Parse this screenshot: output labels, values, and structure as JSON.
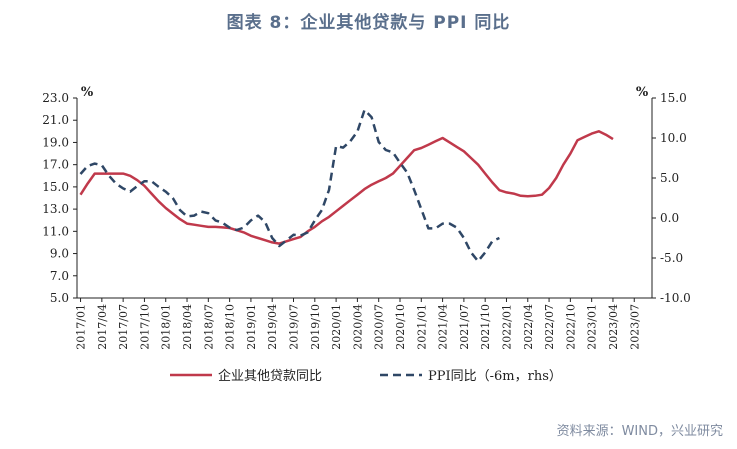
{
  "title": "图表 8：企业其他贷款与 PPI 同比",
  "source": "资料来源：WIND，兴业研究",
  "colors": {
    "loans": "#c0394b",
    "ppi": "#2f4766",
    "axis": "#222222"
  },
  "chart_data": {
    "type": "line",
    "x": [
      "2017/01",
      "2017/02",
      "2017/03",
      "2017/04",
      "2017/05",
      "2017/06",
      "2017/07",
      "2017/08",
      "2017/09",
      "2017/10",
      "2017/11",
      "2017/12",
      "2018/01",
      "2018/02",
      "2018/03",
      "2018/04",
      "2018/05",
      "2018/06",
      "2018/07",
      "2018/08",
      "2018/09",
      "2018/10",
      "2018/11",
      "2018/12",
      "2019/01",
      "2019/02",
      "2019/03",
      "2019/04",
      "2019/05",
      "2019/06",
      "2019/07",
      "2019/08",
      "2019/09",
      "2019/10",
      "2019/11",
      "2019/12",
      "2020/01",
      "2020/02",
      "2020/03",
      "2020/04",
      "2020/05",
      "2020/06",
      "2020/07",
      "2020/08",
      "2020/09",
      "2020/10",
      "2020/11",
      "2020/12",
      "2021/01",
      "2021/02",
      "2021/03",
      "2021/04",
      "2021/05",
      "2021/06",
      "2021/07",
      "2021/08",
      "2021/09",
      "2021/10",
      "2021/11",
      "2021/12",
      "2022/01",
      "2022/02",
      "2022/03",
      "2022/04",
      "2022/05",
      "2022/06",
      "2022/07",
      "2022/08",
      "2022/09",
      "2022/10",
      "2022/11",
      "2022/12",
      "2023/01",
      "2023/02",
      "2023/03",
      "2023/04",
      "2023/05",
      "2023/06",
      "2023/07",
      "2023/08",
      "2023/09"
    ],
    "tick_labels": [
      "2017/01",
      "2017/04",
      "2017/07",
      "2017/10",
      "2018/01",
      "2018/04",
      "2018/07",
      "2018/10",
      "2019/01",
      "2019/04",
      "2019/07",
      "2019/10",
      "2020/01",
      "2020/04",
      "2020/07",
      "2020/10",
      "2021/01",
      "2021/04",
      "2021/07",
      "2021/10",
      "2022/01",
      "2022/04",
      "2022/07",
      "2022/10",
      "2023/01",
      "2023/04",
      "2023/07"
    ],
    "ylim_left": [
      5.0,
      23.0
    ],
    "yticks_left": [
      "5.0",
      "7.0",
      "9.0",
      "11.0",
      "13.0",
      "15.0",
      "17.0",
      "19.0",
      "21.0",
      "23.0"
    ],
    "ylabel_left": "%",
    "ylim_right": [
      -10.0,
      15.0
    ],
    "yticks_right": [
      "-10.0",
      "-5.0",
      "0.0",
      "5.0",
      "10.0",
      "15.0"
    ],
    "ylabel_right": "%",
    "series": [
      {
        "name": "企业其他贷款同比",
        "axis": "left",
        "style": "solid",
        "points": [
          [
            1,
            14.3
          ],
          [
            2,
            15.3
          ],
          [
            3,
            16.2
          ],
          [
            4,
            16.2
          ],
          [
            5,
            16.2
          ],
          [
            6,
            16.2
          ],
          [
            7,
            16.2
          ],
          [
            8,
            16.0
          ],
          [
            9,
            15.6
          ],
          [
            10,
            15.1
          ],
          [
            11,
            14.4
          ],
          [
            12,
            13.7
          ],
          [
            13,
            13.1
          ],
          [
            14,
            12.6
          ],
          [
            15,
            12.1
          ],
          [
            16,
            11.7
          ],
          [
            17,
            11.6
          ],
          [
            18,
            11.5
          ],
          [
            19,
            11.4
          ],
          [
            20,
            11.4
          ],
          [
            21,
            11.35
          ],
          [
            22,
            11.3
          ],
          [
            23,
            11.1
          ],
          [
            24,
            10.9
          ],
          [
            25,
            10.6
          ],
          [
            26,
            10.4
          ],
          [
            27,
            10.2
          ],
          [
            28,
            10.0
          ],
          [
            29,
            9.9
          ],
          [
            30,
            10.1
          ],
          [
            31,
            10.3
          ],
          [
            32,
            10.5
          ],
          [
            33,
            11.0
          ],
          [
            34,
            11.4
          ],
          [
            35,
            11.9
          ],
          [
            36,
            12.3
          ],
          [
            37,
            12.8
          ],
          [
            38,
            13.3
          ],
          [
            39,
            13.8
          ],
          [
            40,
            14.3
          ],
          [
            41,
            14.8
          ],
          [
            42,
            15.2
          ],
          [
            43,
            15.5
          ],
          [
            44,
            15.8
          ],
          [
            45,
            16.2
          ],
          [
            46,
            16.9
          ],
          [
            47,
            17.6
          ],
          [
            48,
            18.3
          ],
          [
            49,
            18.5
          ],
          [
            50,
            18.8
          ],
          [
            51,
            19.1
          ],
          [
            52,
            19.4
          ],
          [
            53,
            19.0
          ],
          [
            54,
            18.6
          ],
          [
            55,
            18.2
          ],
          [
            56,
            17.6
          ],
          [
            57,
            17.0
          ],
          [
            58,
            16.2
          ],
          [
            59,
            15.4
          ],
          [
            60,
            14.7
          ],
          [
            61,
            14.5
          ],
          [
            62,
            14.4
          ],
          [
            63,
            14.2
          ],
          [
            64,
            14.15
          ],
          [
            65,
            14.2
          ],
          [
            66,
            14.3
          ],
          [
            67,
            14.9
          ],
          [
            68,
            15.8
          ],
          [
            69,
            17.0
          ],
          [
            70,
            18.0
          ],
          [
            71,
            19.2
          ],
          [
            72,
            19.5
          ],
          [
            73,
            19.8
          ],
          [
            74,
            20.0
          ],
          [
            75,
            19.7
          ],
          [
            76,
            19.3
          ]
        ]
      },
      {
        "name": "PPI同比（-6m，rhs）",
        "axis": "right",
        "style": "dashed",
        "points": [
          [
            1,
            5.5
          ],
          [
            2,
            6.5
          ],
          [
            3,
            6.8
          ],
          [
            4,
            6.6
          ],
          [
            5,
            5.3
          ],
          [
            6,
            4.3
          ],
          [
            7,
            3.7
          ],
          [
            8,
            3.3
          ],
          [
            9,
            4.0
          ],
          [
            10,
            4.6
          ],
          [
            11,
            4.6
          ],
          [
            12,
            3.9
          ],
          [
            13,
            3.3
          ],
          [
            14,
            2.5
          ],
          [
            15,
            1.0
          ],
          [
            16,
            0.2
          ],
          [
            17,
            0.3
          ],
          [
            18,
            0.8
          ],
          [
            19,
            0.6
          ],
          [
            20,
            -0.3
          ],
          [
            21,
            -0.6
          ],
          [
            22,
            -1.2
          ],
          [
            23,
            -1.5
          ],
          [
            24,
            -1.2
          ],
          [
            25,
            -0.3
          ],
          [
            26,
            0.3
          ],
          [
            27,
            -0.5
          ],
          [
            28,
            -2.5
          ],
          [
            29,
            -3.5
          ],
          [
            30,
            -2.8
          ],
          [
            31,
            -2.1
          ],
          [
            32,
            -2.2
          ],
          [
            33,
            -1.8
          ],
          [
            34,
            -0.3
          ],
          [
            35,
            1.0
          ],
          [
            36,
            3.5
          ],
          [
            37,
            9.0
          ],
          [
            38,
            8.8
          ],
          [
            39,
            9.6
          ],
          [
            40,
            10.8
          ],
          [
            41,
            13.5
          ],
          [
            42,
            12.6
          ],
          [
            43,
            9.5
          ],
          [
            44,
            8.5
          ],
          [
            45,
            8.2
          ],
          [
            46,
            6.9
          ],
          [
            47,
            5.7
          ],
          [
            48,
            3.5
          ],
          [
            49,
            1.1
          ],
          [
            50,
            -1.3
          ],
          [
            51,
            -1.3
          ],
          [
            52,
            -0.7
          ],
          [
            53,
            -0.7
          ],
          [
            54,
            -1.2
          ],
          [
            55,
            -2.5
          ],
          [
            56,
            -4.3
          ],
          [
            57,
            -5.4
          ],
          [
            58,
            -4.3
          ],
          [
            59,
            -2.9
          ],
          [
            60,
            -2.5
          ]
        ]
      }
    ]
  }
}
